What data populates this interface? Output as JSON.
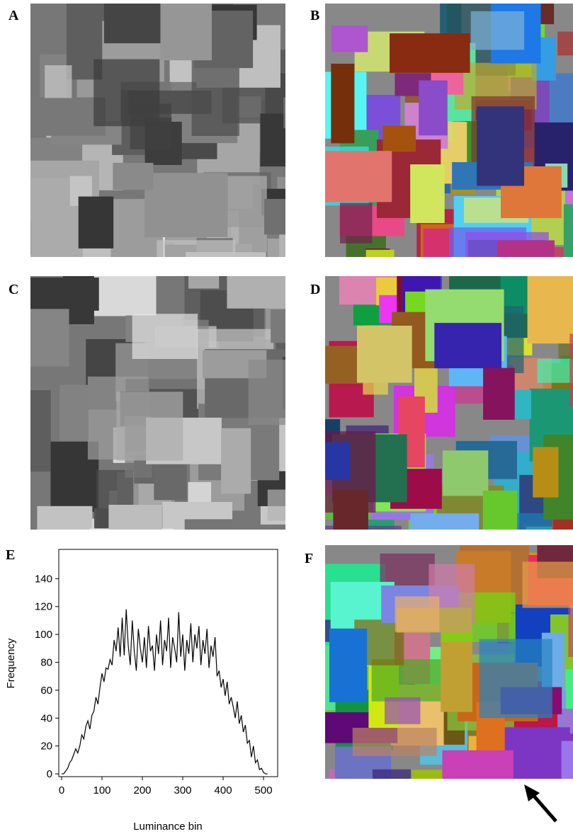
{
  "panels": {
    "labels": [
      "A",
      "B",
      "C",
      "D",
      "E",
      "F"
    ]
  },
  "chart_data": {
    "type": "line",
    "xlabel": "Luminance bin",
    "ylabel": "Frequency",
    "x": [
      0,
      5,
      10,
      15,
      20,
      25,
      30,
      35,
      40,
      45,
      50,
      55,
      60,
      65,
      70,
      75,
      80,
      85,
      90,
      95,
      100,
      105,
      110,
      115,
      120,
      125,
      130,
      135,
      140,
      145,
      150,
      155,
      160,
      165,
      170,
      175,
      180,
      185,
      190,
      195,
      200,
      205,
      210,
      215,
      220,
      225,
      230,
      235,
      240,
      245,
      250,
      255,
      260,
      265,
      270,
      275,
      280,
      285,
      290,
      295,
      300,
      305,
      310,
      315,
      320,
      325,
      330,
      335,
      340,
      345,
      350,
      355,
      360,
      365,
      370,
      375,
      380,
      385,
      390,
      395,
      400,
      405,
      410,
      415,
      420,
      425,
      430,
      435,
      440,
      445,
      450,
      455,
      460,
      465,
      470,
      475,
      480,
      485,
      490,
      495,
      500,
      505,
      510
    ],
    "series": [
      {
        "color": "#000000",
        "values": [
          0,
          0,
          2,
          4,
          8,
          10,
          14,
          18,
          15,
          20,
          28,
          25,
          34,
          38,
          32,
          42,
          45,
          55,
          50,
          62,
          72,
          66,
          76,
          75,
          82,
          78,
          96,
          88,
          105,
          84,
          112,
          85,
          118,
          92,
          78,
          110,
          88,
          74,
          104,
          90,
          80,
          98,
          76,
          106,
          88,
          92,
          74,
          100,
          86,
          110,
          78,
          96,
          88,
          112,
          76,
          98,
          90,
          80,
          116,
          84,
          100,
          74,
          96,
          86,
          108,
          80,
          100,
          90,
          106,
          78,
          96,
          86,
          104,
          76,
          92,
          84,
          98,
          70,
          74,
          62,
          68,
          56,
          66,
          50,
          55,
          48,
          40,
          52,
          36,
          42,
          30,
          35,
          22,
          24,
          12,
          20,
          8,
          10,
          3,
          4,
          1,
          0,
          0
        ]
      }
    ],
    "xlim": [
      -7,
      535
    ],
    "ylim": [
      -2,
      161
    ],
    "xticks": [
      0,
      100,
      200,
      300,
      400,
      500
    ],
    "yticks": [
      0,
      20,
      40,
      60,
      80,
      100,
      120,
      140
    ]
  }
}
